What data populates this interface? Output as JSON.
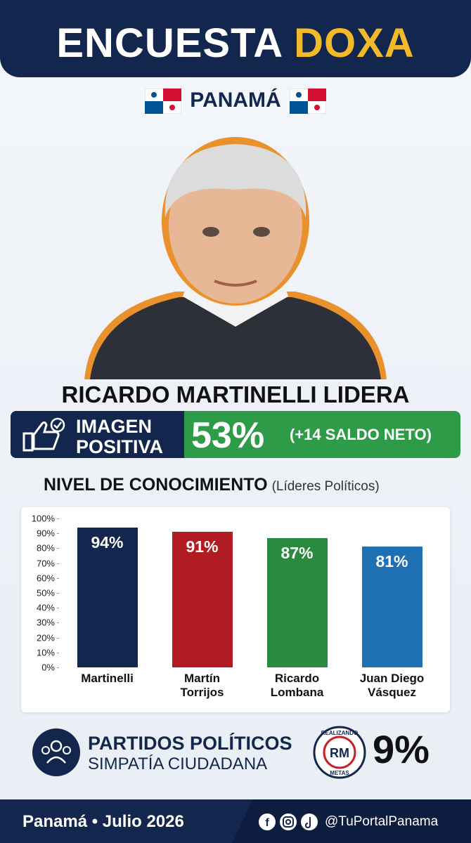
{
  "header": {
    "title_1": "ENCUESTA",
    "title_2": "DOXA",
    "country": "PANAMÁ"
  },
  "headline": "RICARDO MARTINELLI LIDERA",
  "banner": {
    "label_1": "IMAGEN",
    "label_2": "POSITIVA",
    "value": "53%",
    "note": "(+14 SALDO NETO)"
  },
  "chart_data": {
    "type": "bar",
    "title": "NIVEL DE CONOCIMIENTO",
    "subtitle": "(Líderes Políticos)",
    "categories": [
      "Martinelli",
      "Martín Torrijos",
      "Ricardo Lombana",
      "Juan Diego Vásquez"
    ],
    "values": [
      94,
      91,
      87,
      81
    ],
    "value_labels": [
      "94%",
      "91%",
      "87%",
      "81%"
    ],
    "colors": [
      "#13264d",
      "#b01c22",
      "#2a8a3e",
      "#1f70b3"
    ],
    "ylim": [
      0,
      100
    ],
    "yticks": [
      {
        "value": 0,
        "label": "0%"
      },
      {
        "value": 10,
        "label": "10%"
      },
      {
        "value": 20,
        "label": "20%"
      },
      {
        "value": 30,
        "label": "30%"
      },
      {
        "value": 40,
        "label": "40%"
      },
      {
        "value": 50,
        "label": "50%"
      },
      {
        "value": 60,
        "label": "60%"
      },
      {
        "value": 70,
        "label": "70%"
      },
      {
        "value": 80,
        "label": "80%"
      },
      {
        "value": 90,
        "label": "90%"
      },
      {
        "value": 100,
        "label": "100%"
      }
    ],
    "grid": false
  },
  "parties": {
    "line_1": "PARTIDOS POLÍTICOS",
    "line_2": "SIMPATÍA CIUDADANA",
    "logo_top": "REALIZANDO",
    "logo_mid": "RM",
    "logo_bottom": "METAS",
    "value": "9%"
  },
  "footer": {
    "place_date": "Panamá • Julio 2026",
    "handle": "@TuPortalPanama"
  }
}
